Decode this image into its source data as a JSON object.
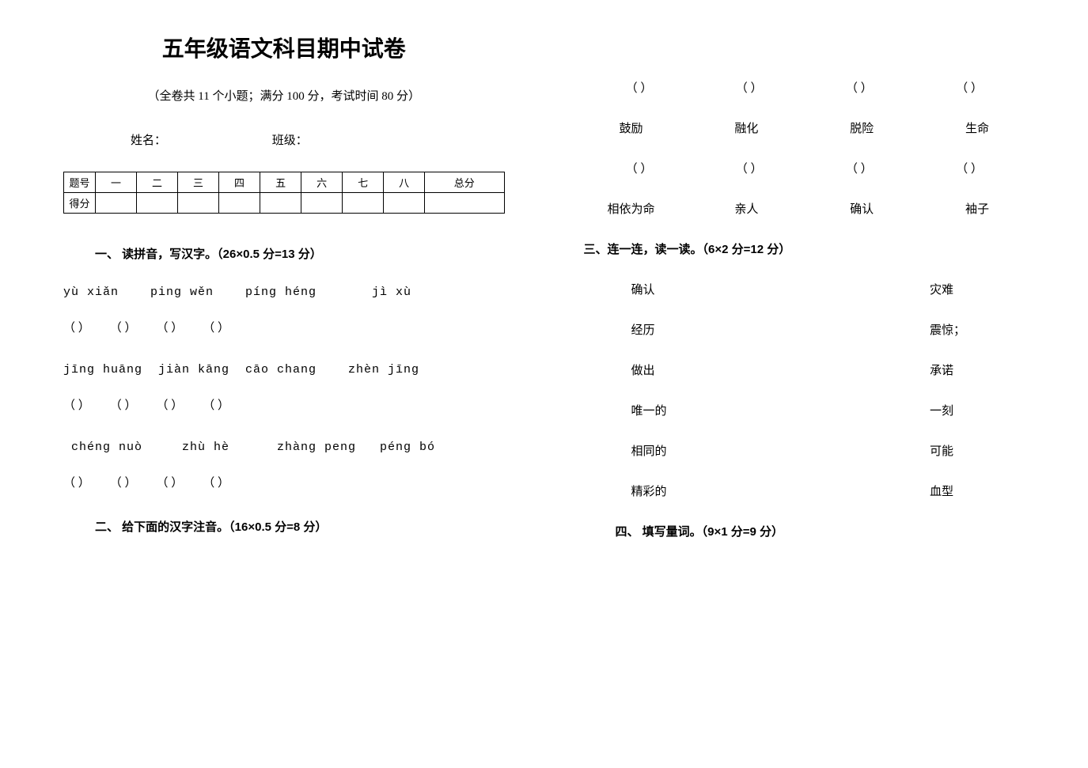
{
  "title": "五年级语文科目期中试卷",
  "subtitle": "（全卷共 11 个小题；满分 100 分，考试时间 80 分）",
  "info": {
    "name_label": "姓名：",
    "class_label": "班级："
  },
  "score_table": {
    "headers": [
      "题号",
      "一",
      "二",
      "三",
      "四",
      "五",
      "六",
      "七",
      "八",
      "总分"
    ],
    "row_label": "得分"
  },
  "section1": {
    "title": "一、 读拼音，写汉字。（26×0.5 分=13 分）",
    "rows": [
      {
        "pinyin": [
          "yù xiǎn",
          "ping wěn",
          "píng héng",
          "jì xù"
        ],
        "spacing": [
          0,
          40,
          40,
          70
        ]
      },
      {
        "pinyin": [
          "jīng huāng",
          "jiàn kāng",
          "cāo chang",
          "zhèn jīng"
        ],
        "spacing": [
          0,
          20,
          20,
          40
        ]
      },
      {
        "pinyin": [
          "chéng nuò",
          "zhù hè",
          "zhàng peng",
          "péng bó"
        ],
        "spacing": [
          10,
          50,
          60,
          30
        ]
      }
    ]
  },
  "section2": {
    "title": "二、 给下面的汉字注音。（16×0.5 分=8 分）",
    "rows": [
      [
        "鼓励",
        "融化",
        "脱险",
        "生命"
      ],
      [
        "相依为命",
        "亲人",
        "确认",
        "袖子"
      ]
    ]
  },
  "section3": {
    "title": "三、连一连，读一读。（6×2 分=12 分）",
    "pairs": [
      [
        "确认",
        "灾难"
      ],
      [
        "经历",
        "震惊；"
      ],
      [
        "做出",
        "承诺"
      ],
      [
        "唯一的",
        "一刻"
      ],
      [
        "相同的",
        "可能"
      ],
      [
        "精彩的",
        "血型"
      ]
    ]
  },
  "section4": {
    "title": "四、 填写量词。（9×1 分=9 分）"
  },
  "paren_text": "（          ）"
}
